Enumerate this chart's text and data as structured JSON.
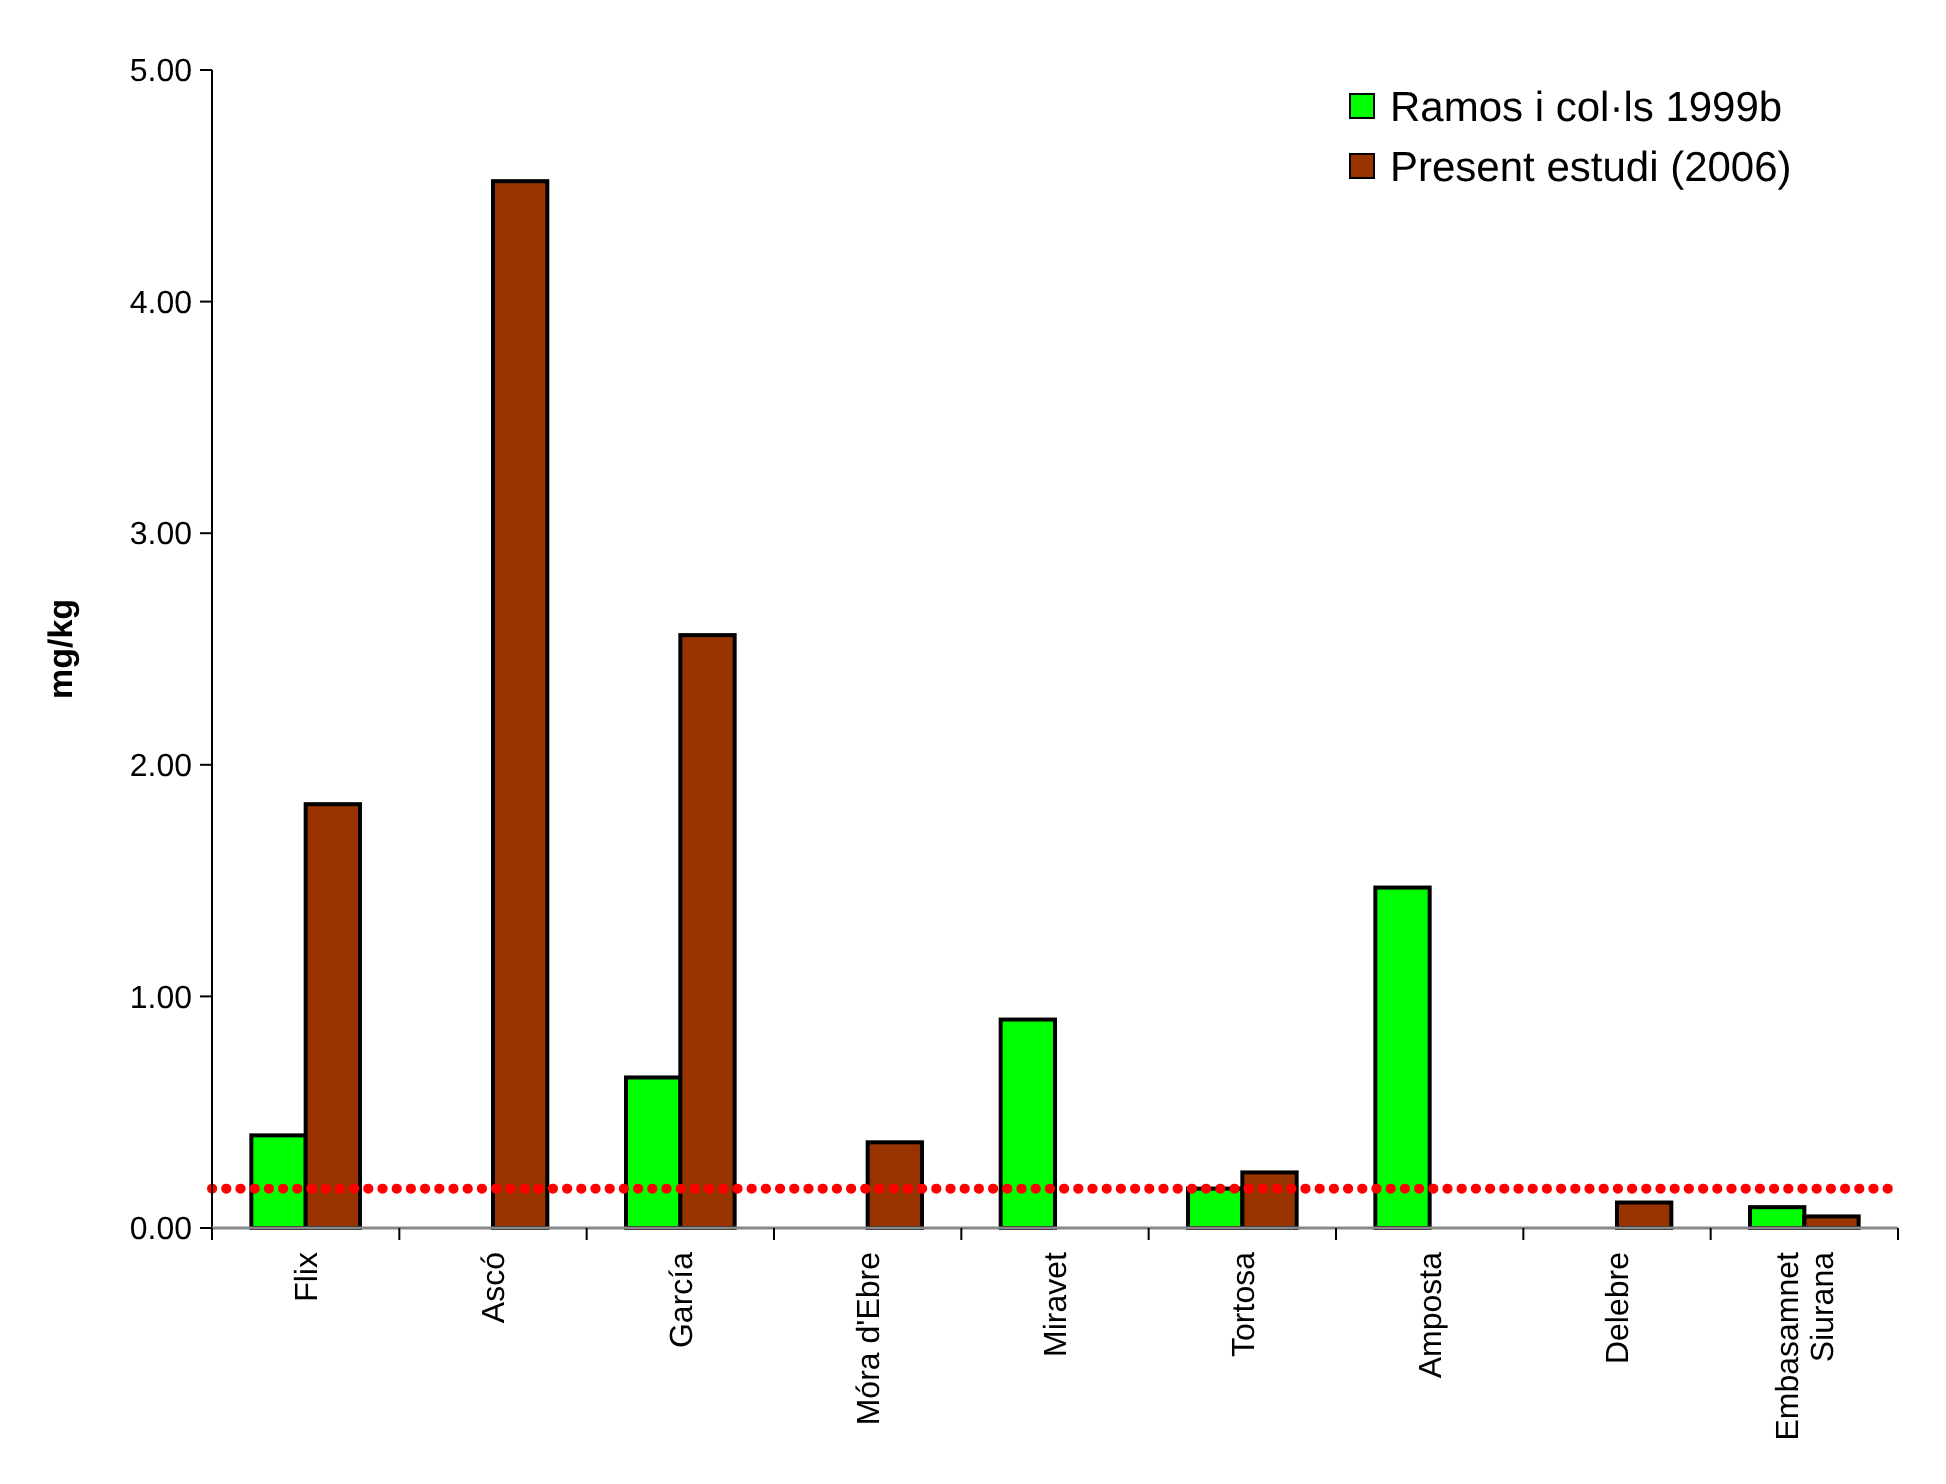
{
  "chart_data": {
    "type": "bar",
    "ylabel": "mg/kg",
    "categories": [
      "Flix",
      "Ascó",
      "García",
      "Móra d'Ebre",
      "Miravet",
      "Tortosa",
      "Amposta",
      "Delebre",
      "Embasamnet\nSiurana"
    ],
    "series": [
      {
        "name": "Ramos i col·ls 1999b",
        "color": "#00ff00",
        "values": [
          0.4,
          null,
          0.65,
          null,
          0.9,
          0.17,
          1.47,
          null,
          0.09
        ]
      },
      {
        "name": "Present estudi (2006)",
        "color": "#993300",
        "values": [
          1.83,
          4.52,
          2.56,
          0.37,
          null,
          0.24,
          null,
          0.11,
          0.05
        ]
      }
    ],
    "ylim": [
      0,
      5
    ],
    "yticks": [
      {
        "value": 0,
        "label": "0.00"
      },
      {
        "value": 1,
        "label": "1.00"
      },
      {
        "value": 2,
        "label": "2.00"
      },
      {
        "value": 3,
        "label": "3.00"
      },
      {
        "value": 4,
        "label": "4.00"
      },
      {
        "value": 5,
        "label": "5.00"
      }
    ],
    "ref_lines": [
      {
        "axis": "y",
        "value": 0.17,
        "color": "#ff0000",
        "line_style": "dotted"
      }
    ],
    "grid": false,
    "legend": "top right"
  }
}
